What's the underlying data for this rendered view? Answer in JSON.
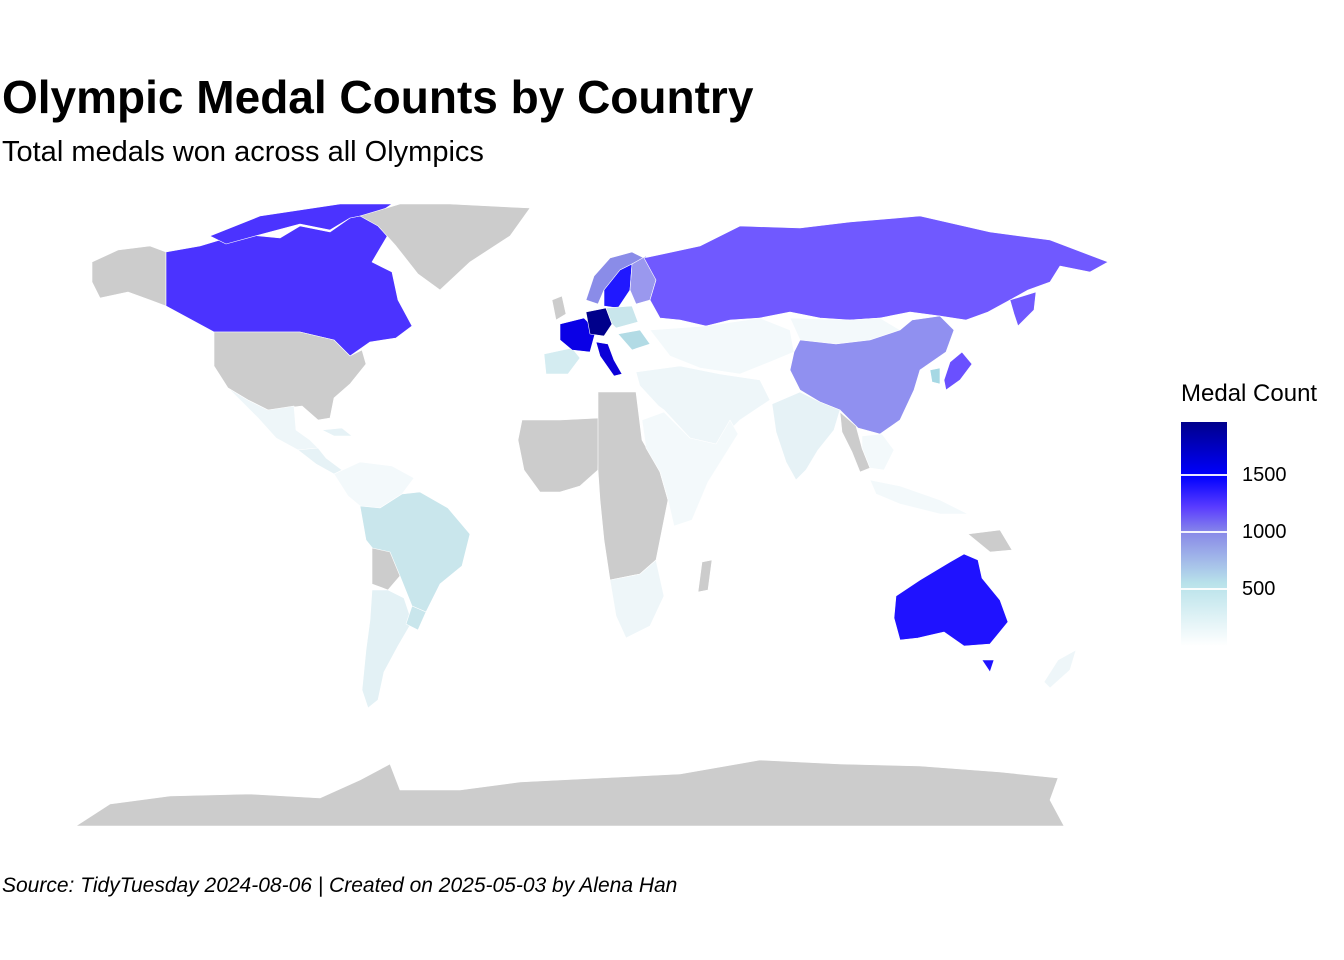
{
  "title": "Olympic Medal Counts by Country",
  "subtitle": "Total medals won across all Olympics",
  "caption": "Source: TidyTuesday 2024-08-06 | Created on 2025-05-03 by Alena Han",
  "legend": {
    "title": "Medal Count",
    "tick_values": [
      500,
      1000,
      1500
    ],
    "tick_labels": [
      "500",
      "1000",
      "1500"
    ],
    "min": 0,
    "max": 1960,
    "colors": {
      "low": "#ffffff",
      "mid_low": "#b8e2ea",
      "mid": "#8a8ce8",
      "high": "#0000ff",
      "max": "#00008b",
      "no_data": "#cccccc"
    }
  },
  "regions": [
    {
      "name": "Canada",
      "fill": "#4b33ff",
      "value": 1100
    },
    {
      "name": "Greenland",
      "fill": "#cccccc",
      "value": null
    },
    {
      "name": "Alaska",
      "fill": "#cccccc",
      "value": null
    },
    {
      "name": "United States",
      "fill": "#cccccc",
      "value": null
    },
    {
      "name": "Mexico",
      "fill": "#eef6f9",
      "value": 80
    },
    {
      "name": "Central America",
      "fill": "#e6f2f6",
      "value": 40
    },
    {
      "name": "Brazil",
      "fill": "#c9e6ec",
      "value": 350
    },
    {
      "name": "Argentina",
      "fill": "#e3f1f5",
      "value": 150
    },
    {
      "name": "Bolivia",
      "fill": "#cccccc",
      "value": null
    },
    {
      "name": "Uruguay",
      "fill": "#c9e6ec",
      "value": 330
    },
    {
      "name": "Northern South America",
      "fill": "#f3f9fb",
      "value": 30
    },
    {
      "name": "Russia",
      "fill": "#7059ff",
      "value": 1000
    },
    {
      "name": "China",
      "fill": "#9090f0",
      "value": 800
    },
    {
      "name": "Australia",
      "fill": "#1f12ff",
      "value": 1500
    },
    {
      "name": "New Zealand",
      "fill": "#eef6f9",
      "value": 100
    },
    {
      "name": "France",
      "fill": "#0a00e6",
      "value": 1700
    },
    {
      "name": "Germany",
      "fill": "#00008b",
      "value": 1960
    },
    {
      "name": "Sweden",
      "fill": "#2018ff",
      "value": 1500
    },
    {
      "name": "Norway",
      "fill": "#8a8ce8",
      "value": 600
    },
    {
      "name": "Finland",
      "fill": "#9a98ee",
      "value": 700
    },
    {
      "name": "Italy",
      "fill": "#0c00d8",
      "value": 1700
    },
    {
      "name": "Spain",
      "fill": "#d4ecf1",
      "value": 300
    },
    {
      "name": "Poland",
      "fill": "#c9e6ec",
      "value": 350
    },
    {
      "name": "Hungary",
      "fill": "#b2dbe5",
      "value": 450
    },
    {
      "name": "Central Asia",
      "fill": "#f3f9fb",
      "value": 20
    },
    {
      "name": "Mongolia",
      "fill": "#f3f9fb",
      "value": 30
    },
    {
      "name": "Middle East",
      "fill": "#eef6f9",
      "value": 40
    },
    {
      "name": "India",
      "fill": "#e6f2f6",
      "value": 40
    },
    {
      "name": "Japan",
      "fill": "#6a50ff",
      "value": 1000
    },
    {
      "name": "Korea",
      "fill": "#a6d8e4",
      "value": 400
    },
    {
      "name": "Southeast Asia",
      "fill": "#f3f9fb",
      "value": 20
    },
    {
      "name": "Myanmar",
      "fill": "#cccccc",
      "value": null
    },
    {
      "name": "North Africa",
      "fill": "#ffffff",
      "value": 5
    },
    {
      "name": "West Africa",
      "fill": "#cccccc",
      "value": null
    },
    {
      "name": "Central Africa",
      "fill": "#cccccc",
      "value": null
    },
    {
      "name": "East Africa",
      "fill": "#f3f9fb",
      "value": 10
    },
    {
      "name": "Southern Africa",
      "fill": "#eef6f9",
      "value": 80
    },
    {
      "name": "Madagascar",
      "fill": "#cccccc",
      "value": null
    },
    {
      "name": "Antarctica",
      "fill": "#cccccc",
      "value": null
    }
  ]
}
